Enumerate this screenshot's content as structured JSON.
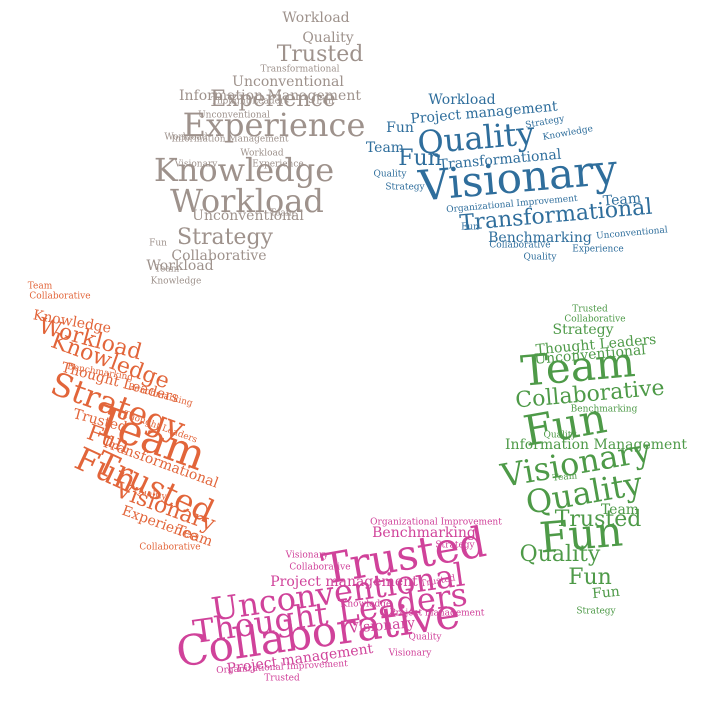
{
  "colors": {
    "gray": "#9e928c",
    "blue": "#2f6e9c",
    "orange": "#e2653a",
    "green": "#4e9a48",
    "pink": "#d0429a"
  },
  "clouds": [
    {
      "name": "gray",
      "words": [
        [
          "Quality",
          2
        ],
        [
          "Trusted",
          3
        ],
        [
          "Workload",
          2
        ],
        [
          "Transformational",
          1
        ],
        [
          "Unconventional",
          2
        ],
        [
          "Information Management",
          2
        ],
        [
          "Thought Leaders",
          1
        ],
        [
          "Experience",
          3
        ],
        [
          "Fun",
          1
        ],
        [
          "Experience",
          4
        ],
        [
          "Unconventional",
          1
        ],
        [
          "Workload",
          1
        ],
        [
          "Information Management",
          1
        ],
        [
          "Knowledge",
          4
        ],
        [
          "Workload",
          1
        ],
        [
          "Visionary",
          1
        ],
        [
          "Workload",
          4
        ],
        [
          "Experience",
          1
        ],
        [
          "Unconventional",
          2
        ],
        [
          "Team",
          1
        ],
        [
          "Strategy",
          3
        ],
        [
          "Collaborative",
          2
        ],
        [
          "Fun",
          1
        ],
        [
          "Workload",
          2
        ],
        [
          "Team",
          1
        ],
        [
          "Knowledge",
          1
        ]
      ]
    },
    {
      "name": "blue",
      "words": [
        [
          "Workload",
          2
        ],
        [
          "Project management",
          2
        ],
        [
          "Quality",
          4
        ],
        [
          "Strategy",
          1
        ],
        [
          "Fun",
          2
        ],
        [
          "Team",
          2
        ],
        [
          "Knowledge",
          1
        ],
        [
          "Transformational",
          2
        ],
        [
          "Fun",
          3
        ],
        [
          "Visionary",
          5
        ],
        [
          "Quality",
          1
        ],
        [
          "Strategy",
          1
        ],
        [
          "Organizational Improvement",
          1
        ],
        [
          "Team",
          2
        ],
        [
          "Transformational",
          3
        ],
        [
          "Fun",
          1
        ],
        [
          "Benchmarking",
          2
        ],
        [
          "Unconventional",
          1
        ],
        [
          "Collaborative",
          1
        ],
        [
          "Quality",
          1
        ],
        [
          "Experience",
          1
        ]
      ]
    },
    {
      "name": "orange",
      "words": [
        [
          "Team",
          1
        ],
        [
          "Collaborative",
          1
        ],
        [
          "Knowledge",
          2
        ],
        [
          "Workload",
          3
        ],
        [
          "Knowledge",
          3
        ],
        [
          "Benchmarking",
          1
        ],
        [
          "Thought Leaders",
          2
        ],
        [
          "Benchmarking",
          1
        ],
        [
          "Strategy",
          4
        ],
        [
          "Trusted",
          2
        ],
        [
          "Thought Leaders",
          1
        ],
        [
          "Fun",
          3
        ],
        [
          "Team",
          5
        ],
        [
          "Transformational",
          2
        ],
        [
          "Fun",
          4
        ],
        [
          "Trusted",
          4
        ],
        [
          "Quality",
          1
        ],
        [
          "Visionary",
          3
        ],
        [
          "Experience",
          2
        ],
        [
          "Team",
          2
        ],
        [
          "Collaborative",
          1
        ]
      ]
    },
    {
      "name": "green",
      "words": [
        [
          "Trusted",
          1
        ],
        [
          "Collaborative",
          1
        ],
        [
          "Strategy",
          2
        ],
        [
          "Thought Leaders",
          2
        ],
        [
          "Unconventional",
          2
        ],
        [
          "Team",
          5
        ],
        [
          "Collaborative",
          3
        ],
        [
          "Benchmarking",
          1
        ],
        [
          "Fun",
          5
        ],
        [
          "Quality",
          1
        ],
        [
          "Information Management",
          2
        ],
        [
          "Visionary",
          4
        ],
        [
          "Team",
          1
        ],
        [
          "Quality",
          4
        ],
        [
          "Team",
          2
        ],
        [
          "Trusted",
          3
        ],
        [
          "Fun",
          5
        ],
        [
          "Quality",
          3
        ],
        [
          "Fun",
          3
        ],
        [
          "Fun",
          2
        ],
        [
          "Strategy",
          1
        ]
      ]
    },
    {
      "name": "pink",
      "words": [
        [
          "Organizational Improvement",
          1
        ],
        [
          "Benchmarking",
          2
        ],
        [
          "Strategy",
          1
        ],
        [
          "Trusted",
          5
        ],
        [
          "Visionary",
          1
        ],
        [
          "Collaborative",
          1
        ],
        [
          "Project management",
          2
        ],
        [
          "Trusted",
          1
        ],
        [
          "Unconventional",
          4
        ],
        [
          "Thought Leaders",
          4
        ],
        [
          "Knowledge",
          1
        ],
        [
          "Project management",
          1
        ],
        [
          "Visionary",
          2
        ],
        [
          "Collaborative",
          5
        ],
        [
          "Quality",
          1
        ],
        [
          "Project management",
          2
        ],
        [
          "Visionary",
          1
        ],
        [
          "Organizational Improvement",
          1
        ],
        [
          "Trusted",
          1
        ]
      ]
    }
  ]
}
